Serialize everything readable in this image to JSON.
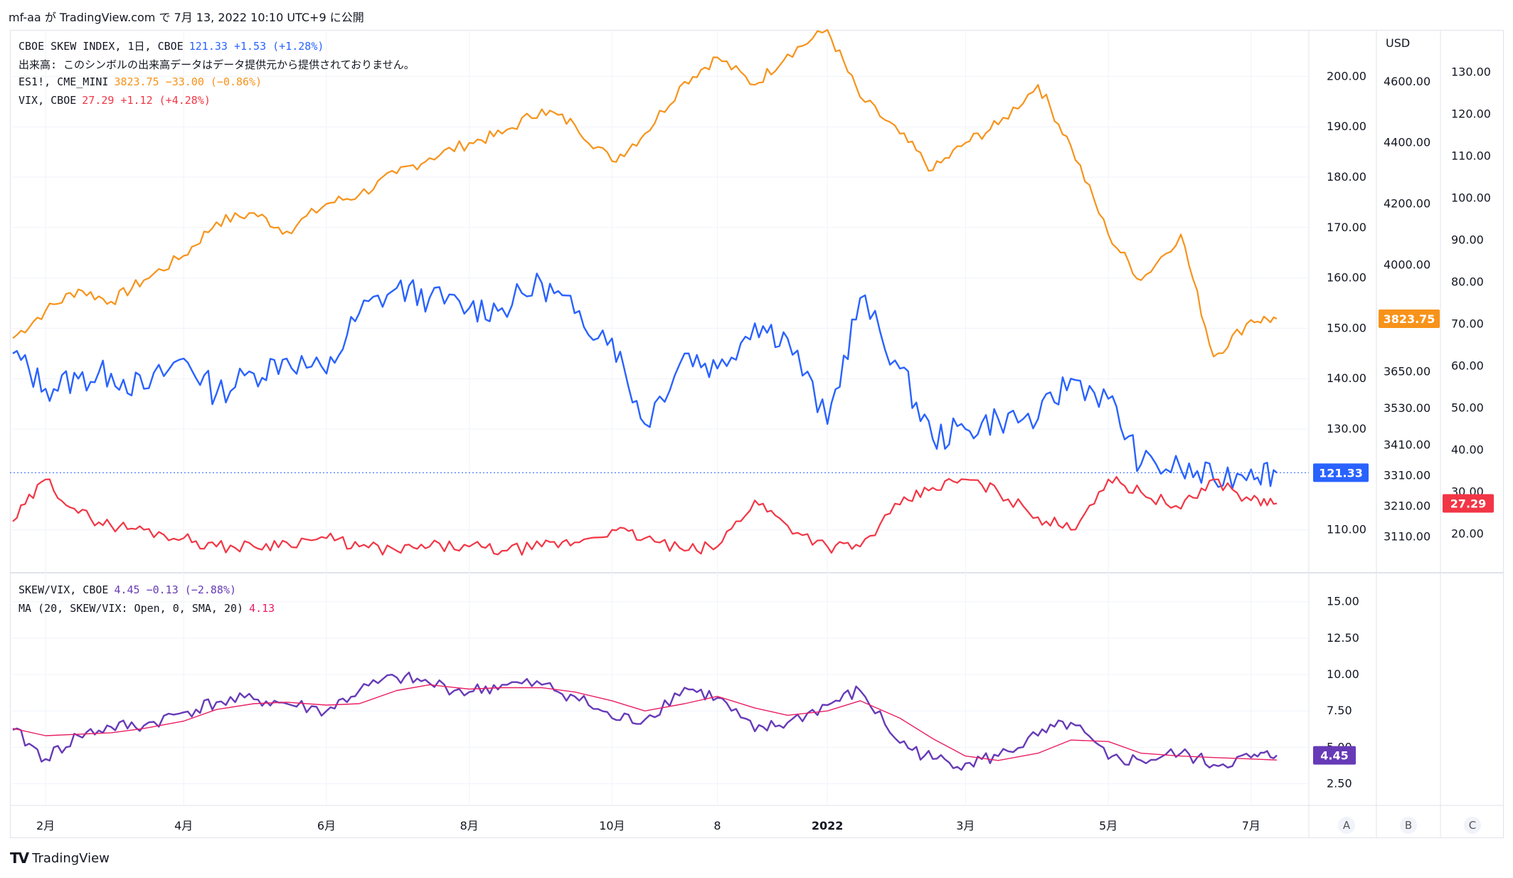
{
  "header": {
    "text": "mf-aa が TradingView.com で 7月 13, 2022 10:10 UTC+9 に公開"
  },
  "legend_top": [
    {
      "name": "CBOE SKEW INDEX, 1日, CBOE",
      "values": "121.33  +1.53 (+1.28%)",
      "color": "#2962ff"
    },
    {
      "name": "出来高: このシンボルの出来高データはデータ提供元から提供されておりません。",
      "values": "",
      "color": "#131722"
    },
    {
      "name": "ES1!, CME_MINI",
      "values": "3823.75  −33.00 (−0.86%)",
      "color": "#f7931a"
    },
    {
      "name": "VIX, CBOE",
      "values": "27.29  +1.12 (+4.28%)",
      "color": "#f23645"
    }
  ],
  "legend_bottom": [
    {
      "name": "SKEW/VIX, CBOE",
      "values": "4.45  −0.13 (−2.88%)",
      "color": "#673ab7"
    },
    {
      "name": "MA (20, SKEW/VIX: Open, 0, SMA, 20)",
      "values": "4.13",
      "color": "#e91e63"
    }
  ],
  "axes": {
    "A": {
      "ticks": [
        "200.00",
        "190.00",
        "180.00",
        "170.00",
        "160.00",
        "150.00",
        "140.00",
        "130.00",
        "110.00"
      ]
    },
    "B": {
      "currency": "USD",
      "ticks": [
        "4600.00",
        "4400.00",
        "4200.00",
        "4000.00",
        "3650.00",
        "3530.00",
        "3410.00",
        "3310.00",
        "3210.00",
        "3110.00"
      ]
    },
    "C": {
      "ticks": [
        "130.00",
        "120.00",
        "110.00",
        "100.00",
        "90.00",
        "80.00",
        "70.00",
        "60.00",
        "50.00",
        "40.00",
        "30.00",
        "20.00"
      ]
    },
    "lower": {
      "ticks": [
        "15.00",
        "12.50",
        "10.00",
        "7.50",
        "5.00",
        "2.50"
      ]
    },
    "x": {
      "ticks": [
        "2月",
        "4月",
        "6月",
        "8月",
        "10月",
        "8",
        "2022",
        "3月",
        "5月",
        "7月"
      ]
    },
    "pane_buttons": [
      "A",
      "B",
      "C"
    ]
  },
  "last_values": {
    "es": "3823.75",
    "skew": "121.33",
    "vix": "27.29",
    "ratio": "4.45"
  },
  "colors": {
    "skew": "#2962ff",
    "es": "#f7931a",
    "vix": "#f23645",
    "ratio": "#673ab7",
    "ma": "#e91e63",
    "grid": "#f0f3fa"
  },
  "chart_data": [
    {
      "type": "line",
      "title": "CBOE SKEW INDEX, 1日, CBOE",
      "x": [
        "2021-01-18",
        "2021-02-01",
        "2021-02-15",
        "2021-03-01",
        "2021-03-15",
        "2021-04-01",
        "2021-04-15",
        "2021-05-01",
        "2021-05-15",
        "2021-06-01",
        "2021-06-15",
        "2021-07-01",
        "2021-07-15",
        "2021-08-01",
        "2021-08-15",
        "2021-09-01",
        "2021-09-15",
        "2021-10-01",
        "2021-10-15",
        "2021-11-01",
        "2021-11-15",
        "2021-12-01",
        "2021-12-15",
        "2022-01-01",
        "2022-01-15",
        "2022-02-01",
        "2022-02-15",
        "2022-03-01",
        "2022-03-15",
        "2022-04-01",
        "2022-04-15",
        "2022-05-01",
        "2022-05-15",
        "2022-06-01",
        "2022-06-15",
        "2022-07-01",
        "2022-07-12"
      ],
      "series": [
        {
          "name": "CBOE SKEW INDEX",
          "axis": "A",
          "values": [
            145,
            138,
            140,
            141,
            138,
            144,
            137,
            141,
            144,
            141,
            153,
            158,
            156,
            154,
            154,
            159,
            153,
            148,
            131,
            145,
            142,
            151,
            148,
            131,
            156,
            142,
            128,
            130,
            132,
            132,
            140,
            136,
            123,
            122,
            120,
            122,
            121.33
          ]
        },
        {
          "name": "ES1!, CME_MINI",
          "axis": "B",
          "values": [
            3760,
            3850,
            3920,
            3880,
            3950,
            4030,
            4140,
            4170,
            4110,
            4200,
            4230,
            4300,
            4350,
            4400,
            4430,
            4510,
            4460,
            4340,
            4430,
            4600,
            4680,
            4590,
            4690,
            4770,
            4550,
            4430,
            4310,
            4400,
            4460,
            4590,
            4390,
            4100,
            3950,
            4100,
            3700,
            3820,
            3823.75
          ]
        },
        {
          "name": "VIX, CBOE",
          "axis": "C",
          "values": [
            23,
            33,
            25,
            22,
            21,
            19,
            17,
            17,
            18,
            19,
            17,
            16,
            17,
            17,
            16,
            17,
            18,
            21,
            19,
            16,
            17,
            28,
            22,
            17,
            17,
            27,
            31,
            33,
            30,
            24,
            21,
            33,
            30,
            26,
            33,
            28,
            27.29
          ]
        }
      ],
      "axes": {
        "A": {
          "min": 105,
          "max": 205
        },
        "B": {
          "min": 3050,
          "max": 4700
        },
        "C": {
          "min": 15,
          "max": 135
        }
      },
      "grid": true
    },
    {
      "type": "line",
      "title": "SKEW/VIX, CBOE",
      "x": [
        "2021-01-18",
        "2021-02-01",
        "2021-02-15",
        "2021-03-01",
        "2021-03-15",
        "2021-04-01",
        "2021-04-15",
        "2021-05-01",
        "2021-05-15",
        "2021-06-01",
        "2021-06-15",
        "2021-07-01",
        "2021-07-15",
        "2021-08-01",
        "2021-08-15",
        "2021-09-01",
        "2021-09-15",
        "2021-10-01",
        "2021-10-15",
        "2021-11-01",
        "2021-11-15",
        "2021-12-01",
        "2021-12-15",
        "2022-01-01",
        "2022-01-15",
        "2022-02-01",
        "2022-02-15",
        "2022-03-01",
        "2022-03-15",
        "2022-04-01",
        "2022-04-15",
        "2022-05-01",
        "2022-05-15",
        "2022-06-01",
        "2022-06-15",
        "2022-07-01",
        "2022-07-12"
      ],
      "series": [
        {
          "name": "SKEW/VIX",
          "values": [
            6.2,
            4.2,
            5.8,
            6.4,
            6.5,
            7.4,
            8.1,
            8.3,
            8.0,
            7.5,
            8.9,
            9.8,
            9.4,
            8.8,
            9.3,
            9.3,
            8.5,
            7.0,
            6.9,
            9.1,
            8.4,
            6.1,
            6.7,
            7.9,
            8.9,
            5.3,
            4.2,
            3.9,
            4.4,
            5.8,
            6.7,
            4.2,
            4.1,
            4.6,
            3.8,
            4.3,
            4.45
          ]
        },
        {
          "name": "MA (20, SKEW/VIX: Open, 0, SMA, 20)",
          "values": [
            6.3,
            5.8,
            5.9,
            6.0,
            6.3,
            6.8,
            7.6,
            8.0,
            8.1,
            7.9,
            8.0,
            8.9,
            9.3,
            9.0,
            9.1,
            9.1,
            8.8,
            8.2,
            7.5,
            8.0,
            8.5,
            7.7,
            7.2,
            7.5,
            8.2,
            7.0,
            5.6,
            4.4,
            4.1,
            4.6,
            5.5,
            5.4,
            4.6,
            4.4,
            4.3,
            4.2,
            4.13
          ]
        }
      ],
      "ylim": [
        1.5,
        16.5
      ],
      "grid": true
    }
  ]
}
